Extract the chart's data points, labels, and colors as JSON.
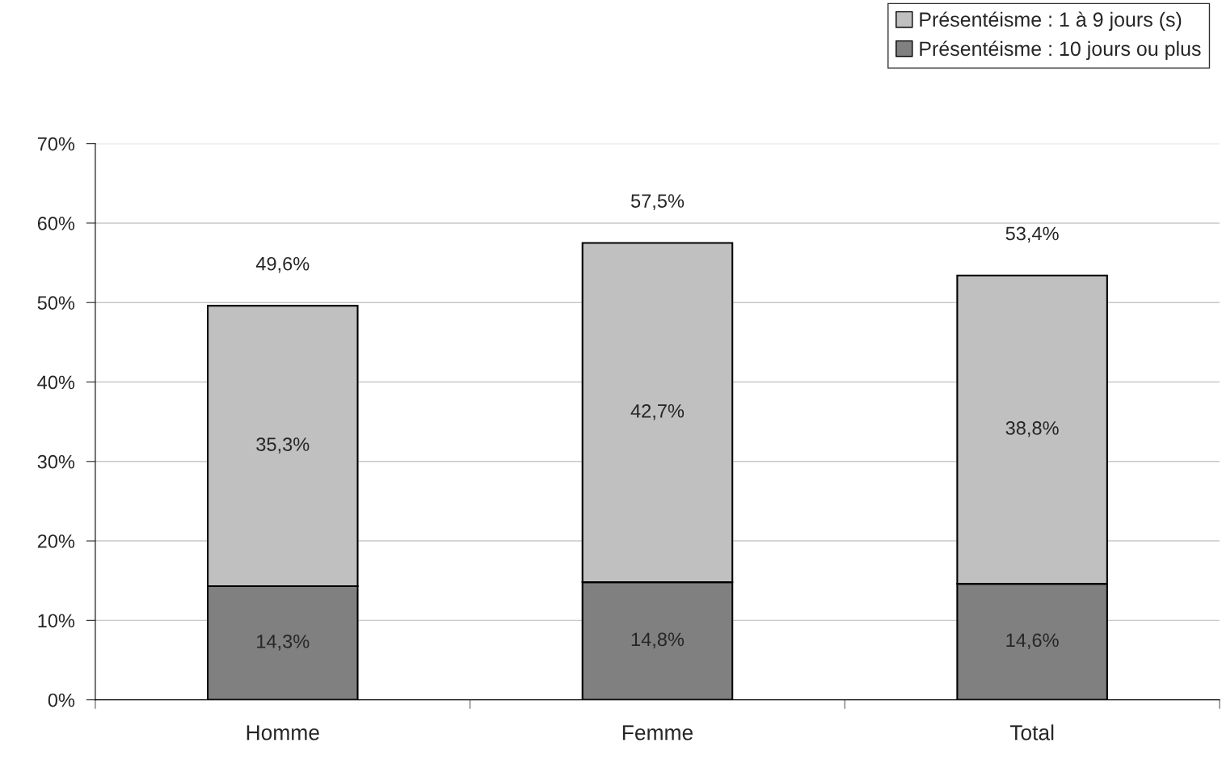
{
  "chart_data": {
    "type": "bar",
    "stacked": true,
    "categories": [
      "Homme",
      "Femme",
      "Total"
    ],
    "series": [
      {
        "name": "Présentéisme : 10 jours ou plus",
        "color": "#808080",
        "values": [
          14.3,
          14.8,
          14.6
        ],
        "value_labels": [
          "14,3%",
          "14,8%",
          "14,6%"
        ]
      },
      {
        "name": "Présentéisme : 1 à 9 jours (s)",
        "color": "#c0c0c0",
        "values": [
          35.3,
          42.7,
          38.8
        ],
        "value_labels": [
          "35,3%",
          "42,7%",
          "38,8%"
        ]
      }
    ],
    "totals": [
      "49,6%",
      "57,5%",
      "53,4%"
    ],
    "ylim": [
      0,
      70
    ],
    "yticks": [
      {
        "value": 0,
        "label": "0%"
      },
      {
        "value": 10,
        "label": "10%"
      },
      {
        "value": 20,
        "label": "20%"
      },
      {
        "value": 30,
        "label": "30%"
      },
      {
        "value": 40,
        "label": "40%"
      },
      {
        "value": 50,
        "label": "50%"
      },
      {
        "value": 60,
        "label": "60%"
      },
      {
        "value": 70,
        "label": "70%"
      }
    ],
    "grid": "y",
    "legend": "top right"
  }
}
